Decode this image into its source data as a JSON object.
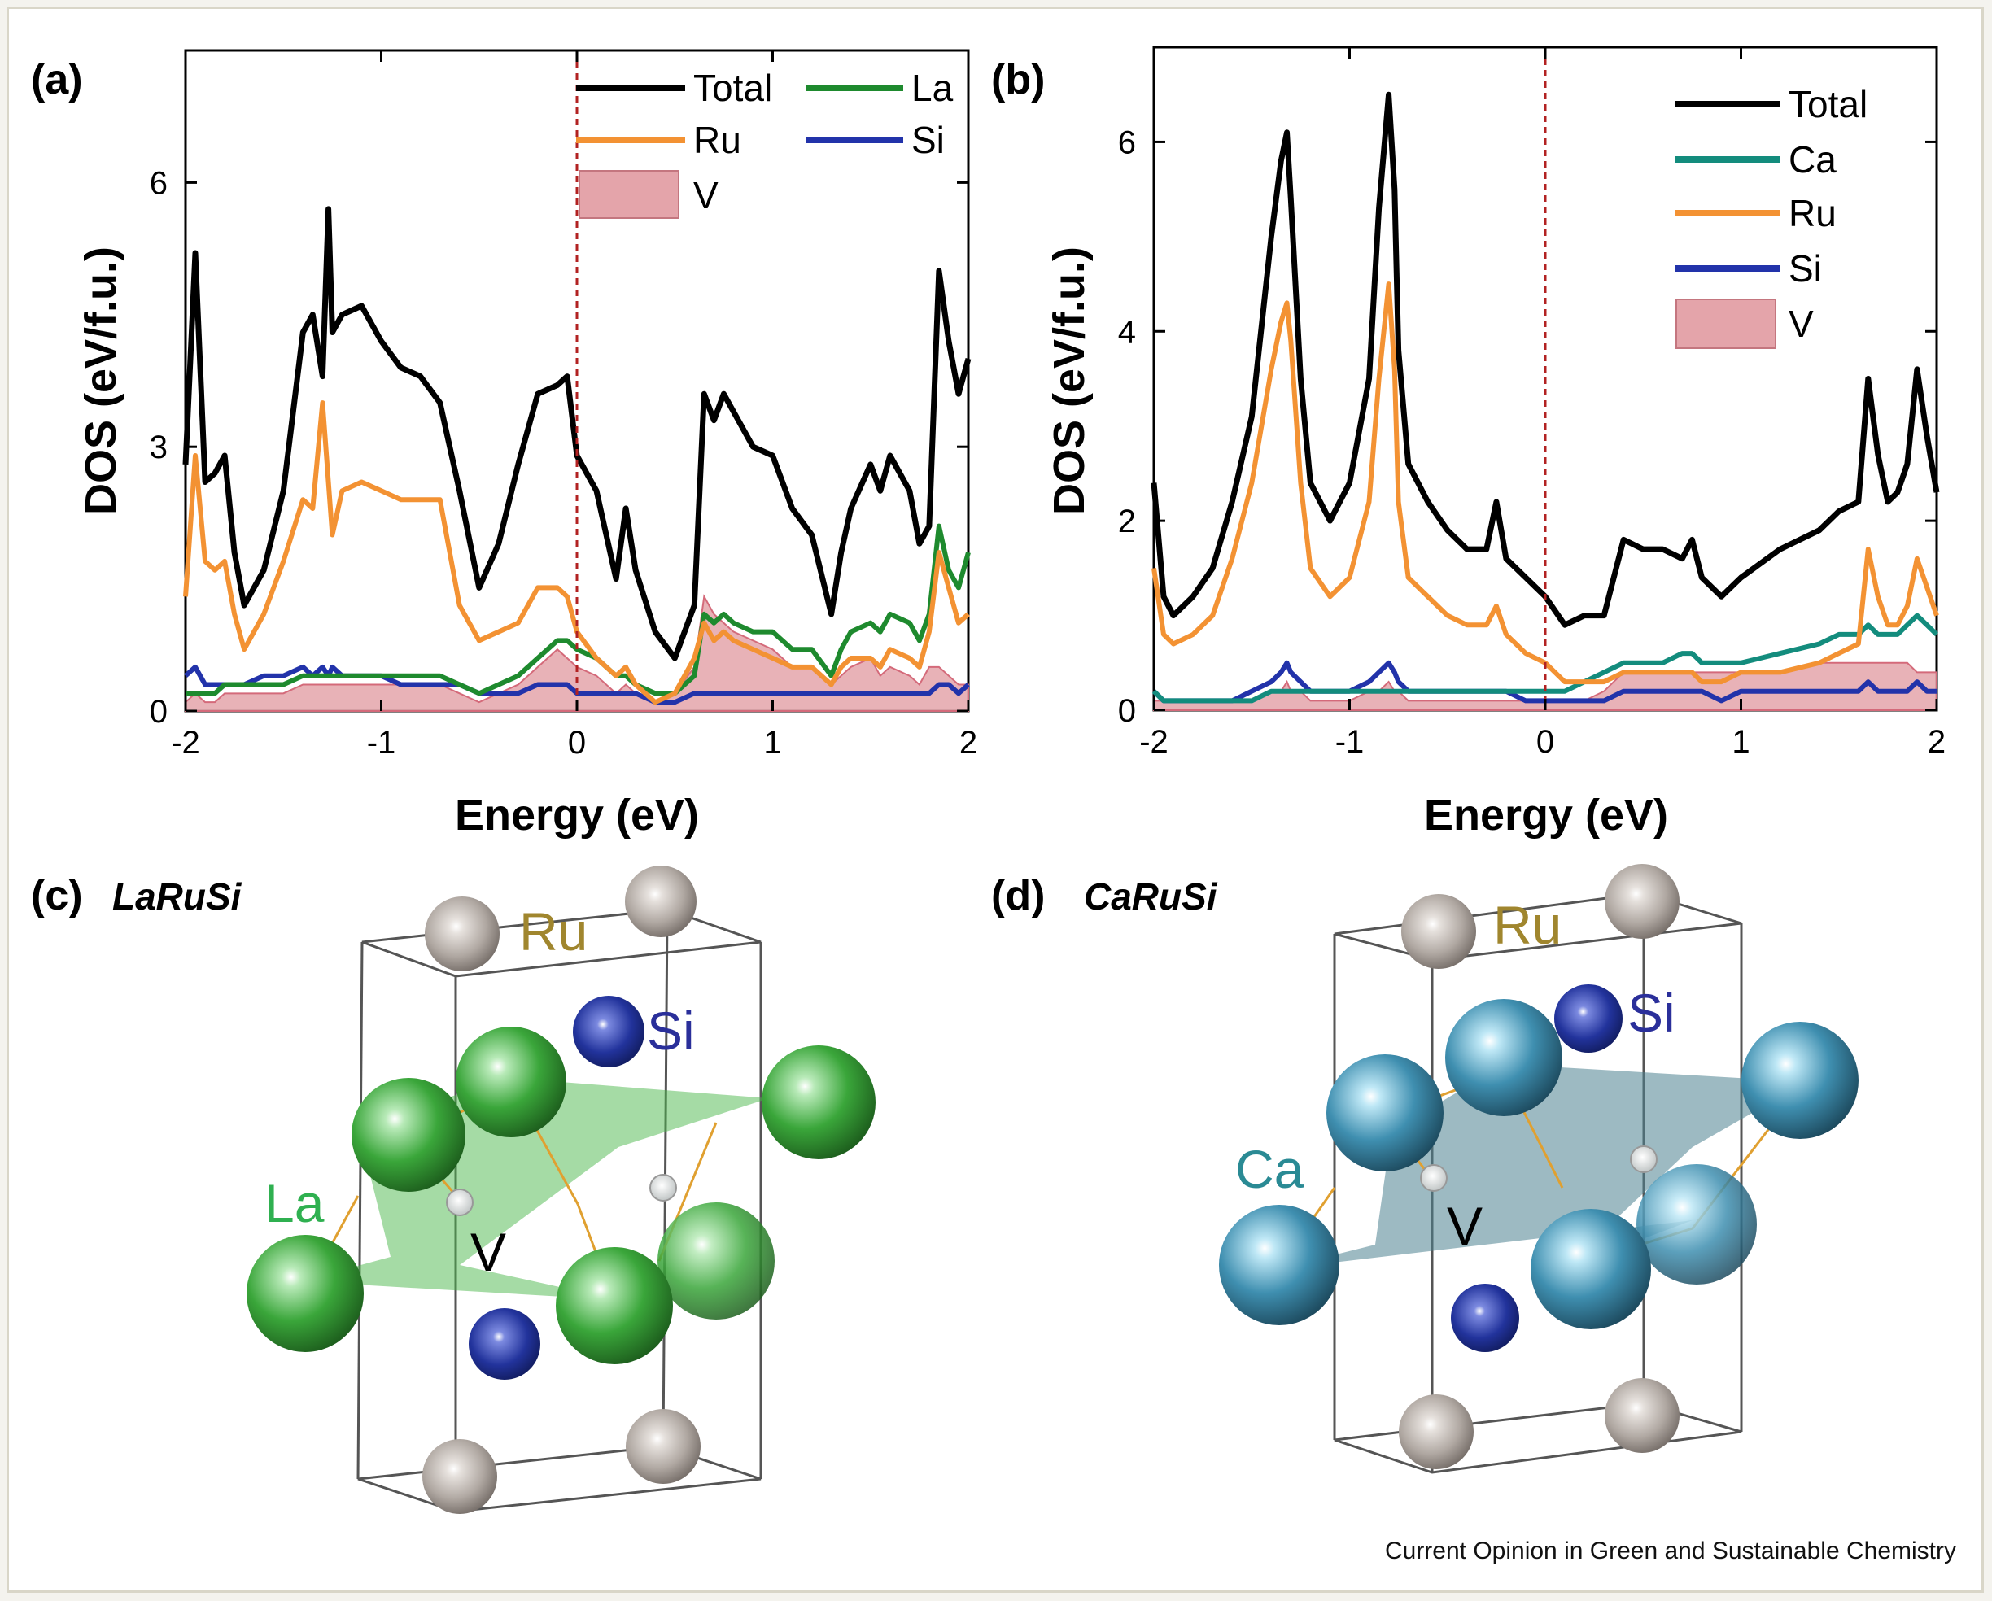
{
  "colors": {
    "total": "#000000",
    "la": "#1e8a2e",
    "ca": "#138c7d",
    "ru": "#f39233",
    "si": "#2233aa",
    "v_fill": "#e4a4aa",
    "fermi": "#b22222",
    "la_atom": "#3aa63a",
    "ca_atom": "#3f8fb0",
    "ru_atom": "#b4aca6",
    "si_atom": "#22339c"
  },
  "panels": {
    "a": {
      "letter": "(a)"
    },
    "b": {
      "letter": "(b)"
    },
    "c": {
      "letter": "(c)",
      "compound": "LaRuSi",
      "labels": {
        "ru": "Ru",
        "si": "Si",
        "la": "La",
        "v": "V"
      }
    },
    "d": {
      "letter": "(d)",
      "compound": "CaRuSi",
      "labels": {
        "ru": "Ru",
        "si": "Si",
        "ca": "Ca",
        "v": "V"
      }
    }
  },
  "credit": "Current Opinion in Green and Sustainable Chemistry",
  "chart_data": [
    {
      "type": "line",
      "panel": "(a)",
      "xlabel": "Energy (eV)",
      "ylabel": "DOS (eV/f.u.)",
      "xlim": [
        -2,
        2
      ],
      "ylim": [
        0,
        7.5
      ],
      "xticks": [
        "-2",
        "-1",
        "0",
        "1",
        "2"
      ],
      "yticks": [
        "0",
        "3",
        "6"
      ],
      "fermi_level": 0,
      "legend_position": "top-right",
      "x": [
        -2.0,
        -1.95,
        -1.9,
        -1.85,
        -1.8,
        -1.75,
        -1.7,
        -1.6,
        -1.5,
        -1.4,
        -1.35,
        -1.3,
        -1.27,
        -1.25,
        -1.2,
        -1.1,
        -1.0,
        -0.9,
        -0.8,
        -0.7,
        -0.6,
        -0.5,
        -0.4,
        -0.3,
        -0.2,
        -0.1,
        -0.05,
        0.0,
        0.1,
        0.2,
        0.25,
        0.3,
        0.4,
        0.5,
        0.6,
        0.65,
        0.7,
        0.75,
        0.8,
        0.9,
        1.0,
        1.1,
        1.2,
        1.3,
        1.35,
        1.4,
        1.5,
        1.55,
        1.6,
        1.7,
        1.75,
        1.8,
        1.85,
        1.9,
        1.95,
        2.0
      ],
      "series": [
        {
          "name": "Total",
          "values": [
            2.8,
            5.2,
            2.6,
            2.7,
            2.9,
            1.8,
            1.2,
            1.6,
            2.5,
            4.3,
            4.5,
            3.8,
            5.7,
            4.3,
            4.5,
            4.6,
            4.2,
            3.9,
            3.8,
            3.5,
            2.5,
            1.4,
            1.9,
            2.8,
            3.6,
            3.7,
            3.8,
            2.9,
            2.5,
            1.5,
            2.3,
            1.6,
            0.9,
            0.6,
            1.2,
            3.6,
            3.3,
            3.6,
            3.4,
            3.0,
            2.9,
            2.3,
            2.0,
            1.1,
            1.8,
            2.3,
            2.8,
            2.5,
            2.9,
            2.5,
            1.9,
            2.1,
            5.0,
            4.2,
            3.6,
            4.0
          ]
        },
        {
          "name": "La",
          "values": [
            0.2,
            0.2,
            0.2,
            0.2,
            0.3,
            0.3,
            0.3,
            0.3,
            0.3,
            0.4,
            0.4,
            0.4,
            0.4,
            0.4,
            0.4,
            0.4,
            0.4,
            0.4,
            0.4,
            0.4,
            0.3,
            0.2,
            0.3,
            0.4,
            0.6,
            0.8,
            0.8,
            0.7,
            0.6,
            0.4,
            0.4,
            0.3,
            0.2,
            0.2,
            0.4,
            1.1,
            1.0,
            1.1,
            1.0,
            0.9,
            0.9,
            0.7,
            0.7,
            0.4,
            0.7,
            0.9,
            1.0,
            0.9,
            1.1,
            1.0,
            0.8,
            1.1,
            2.1,
            1.6,
            1.4,
            1.8
          ]
        },
        {
          "name": "Ru",
          "values": [
            1.3,
            2.9,
            1.7,
            1.6,
            1.7,
            1.1,
            0.7,
            1.1,
            1.7,
            2.4,
            2.3,
            3.5,
            2.6,
            2.0,
            2.5,
            2.6,
            2.5,
            2.4,
            2.4,
            2.4,
            1.2,
            0.8,
            0.9,
            1.0,
            1.4,
            1.4,
            1.3,
            0.9,
            0.6,
            0.4,
            0.5,
            0.3,
            0.1,
            0.2,
            0.6,
            1.0,
            0.8,
            0.9,
            0.8,
            0.7,
            0.6,
            0.5,
            0.5,
            0.3,
            0.5,
            0.6,
            0.6,
            0.5,
            0.7,
            0.6,
            0.5,
            0.9,
            1.8,
            1.4,
            1.0,
            1.1
          ]
        },
        {
          "name": "Si",
          "values": [
            0.4,
            0.5,
            0.3,
            0.3,
            0.3,
            0.3,
            0.3,
            0.4,
            0.4,
            0.5,
            0.4,
            0.5,
            0.4,
            0.5,
            0.4,
            0.4,
            0.4,
            0.3,
            0.3,
            0.3,
            0.3,
            0.2,
            0.2,
            0.2,
            0.3,
            0.3,
            0.3,
            0.2,
            0.2,
            0.2,
            0.2,
            0.2,
            0.1,
            0.1,
            0.2,
            0.2,
            0.2,
            0.2,
            0.2,
            0.2,
            0.2,
            0.2,
            0.2,
            0.2,
            0.2,
            0.2,
            0.2,
            0.2,
            0.2,
            0.2,
            0.2,
            0.2,
            0.3,
            0.3,
            0.2,
            0.3
          ]
        },
        {
          "name": "V",
          "values": [
            0.1,
            0.2,
            0.1,
            0.1,
            0.2,
            0.2,
            0.2,
            0.2,
            0.2,
            0.3,
            0.3,
            0.3,
            0.3,
            0.3,
            0.3,
            0.3,
            0.3,
            0.3,
            0.3,
            0.3,
            0.2,
            0.1,
            0.2,
            0.3,
            0.5,
            0.7,
            0.6,
            0.5,
            0.4,
            0.2,
            0.3,
            0.2,
            0.1,
            0.2,
            0.5,
            1.3,
            1.1,
            1.0,
            0.9,
            0.8,
            0.7,
            0.5,
            0.5,
            0.3,
            0.4,
            0.5,
            0.6,
            0.4,
            0.5,
            0.4,
            0.3,
            0.5,
            0.5,
            0.4,
            0.3,
            0.3
          ]
        }
      ]
    },
    {
      "type": "line",
      "panel": "(b)",
      "xlabel": "Energy (eV)",
      "ylabel": "DOS (eV/f.u.)",
      "xlim": [
        -2,
        2
      ],
      "ylim": [
        0,
        7
      ],
      "xticks": [
        "-2",
        "-1",
        "0",
        "1",
        "2"
      ],
      "yticks": [
        "0",
        "2",
        "4",
        "6"
      ],
      "fermi_level": 0,
      "legend_position": "top-right",
      "x": [
        -2.0,
        -1.95,
        -1.9,
        -1.8,
        -1.7,
        -1.6,
        -1.5,
        -1.4,
        -1.35,
        -1.32,
        -1.3,
        -1.25,
        -1.2,
        -1.1,
        -1.0,
        -0.9,
        -0.85,
        -0.8,
        -0.77,
        -0.75,
        -0.7,
        -0.6,
        -0.5,
        -0.4,
        -0.3,
        -0.25,
        -0.2,
        -0.1,
        0.0,
        0.1,
        0.2,
        0.3,
        0.4,
        0.5,
        0.6,
        0.7,
        0.75,
        0.8,
        0.9,
        1.0,
        1.2,
        1.4,
        1.5,
        1.6,
        1.65,
        1.7,
        1.75,
        1.8,
        1.85,
        1.9,
        1.95,
        2.0
      ],
      "series": [
        {
          "name": "Total",
          "values": [
            2.4,
            1.2,
            1.0,
            1.2,
            1.5,
            2.2,
            3.1,
            5.0,
            5.8,
            6.1,
            5.4,
            3.5,
            2.4,
            2.0,
            2.4,
            3.5,
            5.3,
            6.5,
            5.5,
            3.8,
            2.6,
            2.2,
            1.9,
            1.7,
            1.7,
            2.2,
            1.6,
            1.4,
            1.2,
            0.9,
            1.0,
            1.0,
            1.8,
            1.7,
            1.7,
            1.6,
            1.8,
            1.4,
            1.2,
            1.4,
            1.7,
            1.9,
            2.1,
            2.2,
            3.5,
            2.7,
            2.2,
            2.3,
            2.6,
            3.6,
            2.9,
            2.3
          ]
        },
        {
          "name": "Ca",
          "values": [
            0.2,
            0.1,
            0.1,
            0.1,
            0.1,
            0.1,
            0.1,
            0.2,
            0.2,
            0.2,
            0.2,
            0.2,
            0.2,
            0.2,
            0.2,
            0.2,
            0.2,
            0.2,
            0.2,
            0.2,
            0.2,
            0.2,
            0.2,
            0.2,
            0.2,
            0.2,
            0.2,
            0.2,
            0.2,
            0.2,
            0.3,
            0.4,
            0.5,
            0.5,
            0.5,
            0.6,
            0.6,
            0.5,
            0.5,
            0.5,
            0.6,
            0.7,
            0.8,
            0.8,
            0.9,
            0.8,
            0.8,
            0.8,
            0.9,
            1.0,
            0.9,
            0.8
          ]
        },
        {
          "name": "Ru",
          "values": [
            1.5,
            0.8,
            0.7,
            0.8,
            1.0,
            1.6,
            2.4,
            3.6,
            4.1,
            4.3,
            3.9,
            2.4,
            1.5,
            1.2,
            1.4,
            2.2,
            3.5,
            4.5,
            3.6,
            2.2,
            1.4,
            1.2,
            1.0,
            0.9,
            0.9,
            1.1,
            0.8,
            0.6,
            0.5,
            0.3,
            0.3,
            0.3,
            0.4,
            0.4,
            0.4,
            0.4,
            0.4,
            0.3,
            0.3,
            0.4,
            0.4,
            0.5,
            0.6,
            0.7,
            1.7,
            1.2,
            0.9,
            0.9,
            1.1,
            1.6,
            1.3,
            1.0
          ]
        },
        {
          "name": "Si",
          "values": [
            0.2,
            0.1,
            0.1,
            0.1,
            0.1,
            0.1,
            0.2,
            0.3,
            0.4,
            0.5,
            0.4,
            0.3,
            0.2,
            0.2,
            0.2,
            0.3,
            0.4,
            0.5,
            0.4,
            0.3,
            0.2,
            0.2,
            0.2,
            0.2,
            0.2,
            0.2,
            0.2,
            0.1,
            0.1,
            0.1,
            0.1,
            0.1,
            0.2,
            0.2,
            0.2,
            0.2,
            0.2,
            0.2,
            0.1,
            0.2,
            0.2,
            0.2,
            0.2,
            0.2,
            0.3,
            0.2,
            0.2,
            0.2,
            0.2,
            0.3,
            0.2,
            0.2
          ]
        },
        {
          "name": "V",
          "values": [
            0.1,
            0.1,
            0.1,
            0.1,
            0.1,
            0.1,
            0.1,
            0.2,
            0.2,
            0.3,
            0.2,
            0.2,
            0.1,
            0.1,
            0.1,
            0.2,
            0.2,
            0.3,
            0.2,
            0.2,
            0.1,
            0.1,
            0.1,
            0.1,
            0.1,
            0.1,
            0.1,
            0.1,
            0.1,
            0.1,
            0.1,
            0.2,
            0.4,
            0.4,
            0.4,
            0.4,
            0.4,
            0.4,
            0.4,
            0.4,
            0.4,
            0.5,
            0.5,
            0.5,
            0.5,
            0.5,
            0.5,
            0.5,
            0.5,
            0.4,
            0.4,
            0.4
          ]
        }
      ]
    }
  ]
}
